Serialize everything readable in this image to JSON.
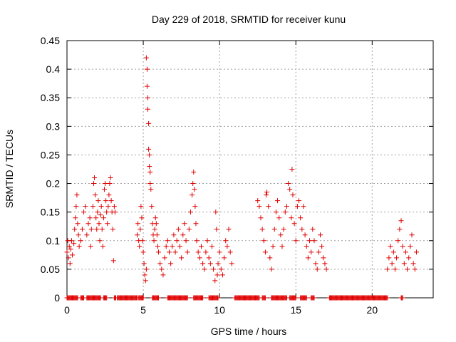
{
  "chart_data": {
    "type": "scatter",
    "title": "Day 229 of 2018, SRMTID for receiver kunu",
    "xlabel": "GPS time / hours",
    "ylabel": "SRMTID / TECUs",
    "xlim": [
      0,
      24
    ],
    "ylim": [
      0,
      0.45
    ],
    "xticks": [
      0,
      5,
      10,
      15,
      20
    ],
    "yticks": [
      0,
      0.05,
      0.1,
      0.15,
      0.2,
      0.25,
      0.3,
      0.35,
      0.4,
      0.45
    ],
    "xtick_labels": [
      "0",
      "5",
      "10",
      "15",
      "20"
    ],
    "ytick_labels": [
      "0",
      "0.05",
      "0.1",
      "0.15",
      "0.2",
      "0.25",
      "0.3",
      "0.35",
      "0.4",
      "0.45"
    ],
    "grid": true,
    "marker": "+",
    "color": "#e00000",
    "series": [
      {
        "name": "SRMTID",
        "points": [
          [
            0.0,
            0.08
          ],
          [
            0.05,
            0.1
          ],
          [
            0.1,
            0.07
          ],
          [
            0.15,
            0.09
          ],
          [
            0.2,
            0.06
          ],
          [
            0.25,
            0.085
          ],
          [
            0.3,
            0.1
          ],
          [
            0.35,
            0.075
          ],
          [
            0.45,
            0.095
          ],
          [
            0.5,
            0.12
          ],
          [
            0.55,
            0.14
          ],
          [
            0.6,
            0.16
          ],
          [
            0.65,
            0.18
          ],
          [
            0.7,
            0.13
          ],
          [
            0.75,
            0.11
          ],
          [
            0.8,
            0.09
          ],
          [
            0.9,
            0.1
          ],
          [
            1.0,
            0.12
          ],
          [
            1.1,
            0.15
          ],
          [
            1.2,
            0.16
          ],
          [
            1.3,
            0.11
          ],
          [
            1.4,
            0.13
          ],
          [
            1.5,
            0.14
          ],
          [
            1.55,
            0.09
          ],
          [
            1.6,
            0.12
          ],
          [
            1.7,
            0.16
          ],
          [
            1.75,
            0.2
          ],
          [
            1.8,
            0.21
          ],
          [
            1.85,
            0.18
          ],
          [
            1.9,
            0.14
          ],
          [
            1.95,
            0.12
          ],
          [
            2.0,
            0.15
          ],
          [
            2.05,
            0.17
          ],
          [
            2.1,
            0.13
          ],
          [
            2.15,
            0.1
          ],
          [
            2.2,
            0.145
          ],
          [
            2.25,
            0.16
          ],
          [
            2.3,
            0.12
          ],
          [
            2.35,
            0.09
          ],
          [
            2.4,
            0.14
          ],
          [
            2.45,
            0.19
          ],
          [
            2.5,
            0.2
          ],
          [
            2.55,
            0.17
          ],
          [
            2.6,
            0.15
          ],
          [
            2.65,
            0.13
          ],
          [
            2.7,
            0.16
          ],
          [
            2.75,
            0.18
          ],
          [
            2.8,
            0.2
          ],
          [
            2.85,
            0.21
          ],
          [
            2.9,
            0.17
          ],
          [
            2.95,
            0.15
          ],
          [
            3.0,
            0.12
          ],
          [
            3.05,
            0.065
          ],
          [
            3.1,
            0.16
          ],
          [
            3.15,
            0.15
          ],
          [
            4.6,
            0.11
          ],
          [
            4.65,
            0.13
          ],
          [
            4.7,
            0.1
          ],
          [
            4.75,
            0.09
          ],
          [
            4.8,
            0.12
          ],
          [
            4.85,
            0.16
          ],
          [
            4.9,
            0.14
          ],
          [
            4.95,
            0.1
          ],
          [
            5.0,
            0.08
          ],
          [
            5.05,
            0.06
          ],
          [
            5.1,
            0.04
          ],
          [
            5.15,
            0.03
          ],
          [
            5.2,
            0.05
          ],
          [
            5.2,
            0.42
          ],
          [
            5.25,
            0.4
          ],
          [
            5.25,
            0.37
          ],
          [
            5.3,
            0.35
          ],
          [
            5.3,
            0.33
          ],
          [
            5.35,
            0.305
          ],
          [
            5.35,
            0.26
          ],
          [
            5.4,
            0.25
          ],
          [
            5.4,
            0.23
          ],
          [
            5.45,
            0.22
          ],
          [
            5.45,
            0.2
          ],
          [
            5.5,
            0.19
          ],
          [
            5.55,
            0.16
          ],
          [
            5.6,
            0.13
          ],
          [
            5.65,
            0.11
          ],
          [
            5.7,
            0.1
          ],
          [
            5.75,
            0.12
          ],
          [
            5.8,
            0.14
          ],
          [
            5.85,
            0.13
          ],
          [
            5.9,
            0.11
          ],
          [
            5.95,
            0.09
          ],
          [
            6.0,
            0.08
          ],
          [
            6.1,
            0.06
          ],
          [
            6.2,
            0.05
          ],
          [
            6.3,
            0.04
          ],
          [
            6.4,
            0.07
          ],
          [
            6.5,
            0.09
          ],
          [
            6.6,
            0.1
          ],
          [
            6.7,
            0.08
          ],
          [
            6.8,
            0.06
          ],
          [
            6.9,
            0.09
          ],
          [
            7.0,
            0.11
          ],
          [
            7.1,
            0.08
          ],
          [
            7.2,
            0.1
          ],
          [
            7.3,
            0.12
          ],
          [
            7.4,
            0.09
          ],
          [
            7.5,
            0.07
          ],
          [
            7.6,
            0.11
          ],
          [
            7.7,
            0.13
          ],
          [
            7.8,
            0.1
          ],
          [
            7.9,
            0.08
          ],
          [
            8.0,
            0.12
          ],
          [
            8.1,
            0.15
          ],
          [
            8.2,
            0.18
          ],
          [
            8.25,
            0.2
          ],
          [
            8.3,
            0.22
          ],
          [
            8.35,
            0.19
          ],
          [
            8.4,
            0.16
          ],
          [
            8.45,
            0.13
          ],
          [
            8.5,
            0.1
          ],
          [
            8.6,
            0.08
          ],
          [
            8.7,
            0.07
          ],
          [
            8.8,
            0.09
          ],
          [
            8.9,
            0.06
          ],
          [
            9.0,
            0.05
          ],
          [
            9.1,
            0.08
          ],
          [
            9.2,
            0.1
          ],
          [
            9.3,
            0.07
          ],
          [
            9.4,
            0.06
          ],
          [
            9.5,
            0.09
          ],
          [
            9.6,
            0.05
          ],
          [
            9.7,
            0.03
          ],
          [
            9.75,
            0.15
          ],
          [
            9.8,
            0.12
          ],
          [
            9.85,
            0.04
          ],
          [
            9.9,
            0.06
          ],
          [
            10.0,
            0.08
          ],
          [
            10.1,
            0.05
          ],
          [
            10.2,
            0.04
          ],
          [
            10.3,
            0.07
          ],
          [
            10.4,
            0.1
          ],
          [
            10.5,
            0.09
          ],
          [
            10.6,
            0.12
          ],
          [
            10.7,
            0.08
          ],
          [
            10.8,
            0.06
          ],
          [
            12.5,
            0.17
          ],
          [
            12.6,
            0.16
          ],
          [
            12.7,
            0.14
          ],
          [
            12.8,
            0.12
          ],
          [
            12.9,
            0.1
          ],
          [
            13.0,
            0.08
          ],
          [
            13.05,
            0.18
          ],
          [
            13.1,
            0.185
          ],
          [
            13.2,
            0.16
          ],
          [
            13.3,
            0.07
          ],
          [
            13.4,
            0.05
          ],
          [
            13.5,
            0.09
          ],
          [
            13.6,
            0.12
          ],
          [
            13.7,
            0.15
          ],
          [
            13.8,
            0.17
          ],
          [
            13.9,
            0.14
          ],
          [
            14.0,
            0.11
          ],
          [
            14.1,
            0.09
          ],
          [
            14.2,
            0.12
          ],
          [
            14.3,
            0.15
          ],
          [
            14.4,
            0.16
          ],
          [
            14.5,
            0.2
          ],
          [
            14.6,
            0.19
          ],
          [
            14.7,
            0.14
          ],
          [
            14.75,
            0.225
          ],
          [
            14.8,
            0.18
          ],
          [
            14.9,
            0.13
          ],
          [
            15.0,
            0.1
          ],
          [
            15.1,
            0.16
          ],
          [
            15.2,
            0.17
          ],
          [
            15.3,
            0.14
          ],
          [
            15.4,
            0.12
          ],
          [
            15.5,
            0.16
          ],
          [
            15.6,
            0.11
          ],
          [
            15.7,
            0.09
          ],
          [
            15.8,
            0.07
          ],
          [
            15.9,
            0.1
          ],
          [
            16.0,
            0.08
          ],
          [
            16.1,
            0.12
          ],
          [
            16.2,
            0.1
          ],
          [
            16.3,
            0.06
          ],
          [
            16.4,
            0.05
          ],
          [
            16.5,
            0.08
          ],
          [
            16.6,
            0.11
          ],
          [
            16.7,
            0.09
          ],
          [
            16.8,
            0.07
          ],
          [
            16.9,
            0.06
          ],
          [
            17.0,
            0.05
          ],
          [
            21.0,
            0.05
          ],
          [
            21.1,
            0.07
          ],
          [
            21.2,
            0.09
          ],
          [
            21.3,
            0.06
          ],
          [
            21.4,
            0.08
          ],
          [
            21.5,
            0.05
          ],
          [
            21.6,
            0.07
          ],
          [
            21.7,
            0.1
          ],
          [
            21.8,
            0.12
          ],
          [
            21.9,
            0.135
          ],
          [
            22.0,
            0.09
          ],
          [
            22.1,
            0.06
          ],
          [
            22.2,
            0.08
          ],
          [
            22.3,
            0.05
          ],
          [
            22.4,
            0.07
          ],
          [
            22.5,
            0.09
          ],
          [
            22.6,
            0.11
          ],
          [
            22.7,
            0.06
          ],
          [
            22.8,
            0.05
          ],
          [
            22.9,
            0.08
          ]
        ]
      }
    ],
    "zero_segments": [
      [
        0.0,
        0.7
      ],
      [
        0.9,
        1.1
      ],
      [
        1.3,
        2.2
      ],
      [
        2.4,
        2.6
      ],
      [
        3.1,
        3.2
      ],
      [
        3.3,
        4.6
      ],
      [
        4.7,
        5.0
      ],
      [
        5.6,
        6.0
      ],
      [
        6.6,
        7.9
      ],
      [
        8.3,
        8.9
      ],
      [
        9.3,
        9.9
      ],
      [
        11.0,
        12.6
      ],
      [
        12.8,
        13.0
      ],
      [
        13.4,
        14.4
      ],
      [
        14.6,
        15.0
      ],
      [
        15.3,
        15.7
      ],
      [
        16.0,
        16.2
      ],
      [
        17.2,
        21.0
      ],
      [
        21.9,
        22.0
      ]
    ]
  }
}
